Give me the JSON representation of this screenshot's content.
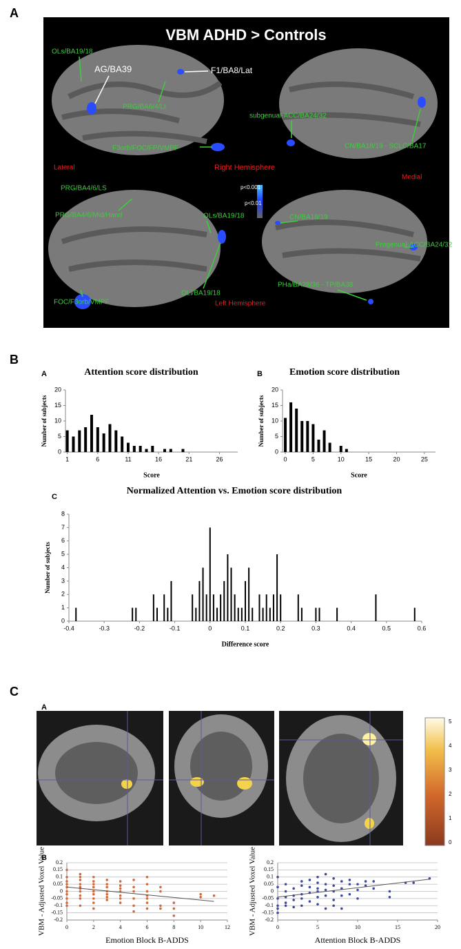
{
  "panel_labels": [
    "A",
    "B",
    "C"
  ],
  "brain_figure": {
    "title": "VBM ADHD > Controls",
    "annotations": [
      "OLs/BA19/18",
      "AG/BA39",
      "F1/BA8/Lat",
      "PRG/BA6/4/Lt",
      "subgenual-ACC/BA24/32",
      "F3orb/FOC/FP/VMPF",
      "CN/BA18/19 - SCLC/BA17",
      "Lateral",
      "Right Hemisphere",
      "Medial",
      "PRG/BA4/6/LS",
      "p<0.001",
      "p<0.01",
      "PRG/BA4/6/Mid/Hand",
      "OLs/BA19/18",
      "CN/BA18/19",
      "Pregenual-ACC/BA24/32",
      "FOC/F3orb/VMPF",
      "OLi/BA19/18",
      "Left Hemisphere",
      "PHa/BA28/36 - TP/BA38"
    ]
  },
  "histogram_sub_labels": [
    "A",
    "B",
    "C"
  ],
  "correlation_sub_labels": [
    "A",
    "B"
  ],
  "colorbar": {
    "ticks": [
      0,
      1,
      2,
      3,
      4,
      5
    ]
  },
  "chart_data": [
    {
      "type": "bar",
      "title": "Attention score distribution",
      "x_label": "Score",
      "y_label": "Number of subjects",
      "x": [
        1,
        2,
        3,
        4,
        5,
        6,
        7,
        8,
        9,
        10,
        11,
        12,
        13,
        14,
        15,
        16,
        17,
        18,
        19,
        20
      ],
      "values": [
        7,
        5,
        7,
        8,
        12,
        8,
        6,
        9,
        7,
        5,
        3,
        2,
        2,
        1,
        2,
        0,
        1,
        1,
        0,
        1
      ],
      "xlim": [
        0.7,
        29
      ],
      "xticks": [
        1,
        6,
        11,
        16,
        21,
        26
      ],
      "ylim": [
        0,
        20
      ],
      "yticks": [
        0,
        5,
        10,
        15,
        20
      ],
      "color": "#000000"
    },
    {
      "type": "bar",
      "title": "Emotion score distribution",
      "x_label": "Score",
      "y_label": "Number of subjects",
      "x": [
        0,
        1,
        2,
        3,
        4,
        5,
        6,
        7,
        8,
        9,
        10,
        11
      ],
      "values": [
        11,
        16,
        14,
        10,
        10,
        9,
        4,
        7,
        3,
        0,
        2,
        1
      ],
      "xlim": [
        -0.5,
        27
      ],
      "xticks": [
        0,
        5,
        10,
        15,
        20,
        25
      ],
      "ylim": [
        0,
        20
      ],
      "yticks": [
        0,
        5,
        10,
        15,
        20
      ],
      "color": "#000000"
    },
    {
      "type": "bar",
      "title": "Normalized Attention vs. Emotion score distribution",
      "x_label": "Difference score",
      "y_label": "Number of subjects",
      "x": [
        -0.38,
        -0.22,
        -0.21,
        -0.16,
        -0.15,
        -0.13,
        -0.12,
        -0.11,
        -0.05,
        -0.04,
        -0.03,
        -0.02,
        -0.01,
        0,
        0.01,
        0.02,
        0.03,
        0.04,
        0.05,
        0.06,
        0.07,
        0.08,
        0.09,
        0.1,
        0.11,
        0.12,
        0.14,
        0.15,
        0.16,
        0.17,
        0.18,
        0.19,
        0.2,
        0.25,
        0.26,
        0.3,
        0.31,
        0.36,
        0.47,
        0.58
      ],
      "values": [
        1,
        1,
        1,
        2,
        1,
        2,
        1,
        3,
        2,
        1,
        3,
        4,
        2,
        7,
        2,
        1,
        2,
        3,
        5,
        4,
        2,
        1,
        1,
        3,
        4,
        1,
        2,
        1,
        2,
        1,
        2,
        5,
        2,
        2,
        1,
        1,
        1,
        1,
        2,
        1
      ],
      "xlim": [
        -0.4,
        0.6
      ],
      "xticks": [
        -0.4,
        -0.3,
        -0.2,
        -0.1,
        0,
        0.1,
        0.2,
        0.3,
        0.4,
        0.5,
        0.6
      ],
      "ylim": [
        0,
        8
      ],
      "yticks": [
        0,
        1,
        2,
        3,
        4,
        5,
        6,
        7,
        8
      ],
      "color": "#000000"
    },
    {
      "type": "scatter",
      "x_label": "Emotion Block B-ADDS",
      "y_label": "VBM - Adjusted Voxel Value",
      "color": "#d2693c",
      "x": [
        0,
        0,
        0,
        0,
        0,
        0,
        0,
        0,
        0,
        0,
        1,
        1,
        1,
        1,
        1,
        1,
        1,
        1,
        1,
        1,
        2,
        2,
        2,
        2,
        2,
        2,
        2,
        2,
        2,
        3,
        3,
        3,
        3,
        3,
        3,
        3,
        4,
        4,
        4,
        4,
        4,
        4,
        4,
        5,
        5,
        5,
        5,
        5,
        5,
        6,
        6,
        6,
        6,
        6,
        6,
        6,
        7,
        7,
        7,
        7,
        8,
        8,
        8,
        10,
        10,
        11
      ],
      "values": [
        0.15,
        0.1,
        0.07,
        0.05,
        0.03,
        0,
        -0.02,
        -0.05,
        -0.08,
        -0.1,
        0.12,
        0.1,
        0.08,
        0.05,
        0.03,
        0.02,
        0,
        -0.03,
        -0.05,
        -0.1,
        0.1,
        0.07,
        0.05,
        0.03,
        0,
        -0.02,
        -0.05,
        -0.08,
        -0.12,
        0.08,
        0.05,
        0.03,
        0,
        -0.02,
        -0.04,
        -0.06,
        0.07,
        0.04,
        0.02,
        0,
        -0.03,
        -0.05,
        -0.08,
        0.08,
        0.03,
        0,
        -0.05,
        -0.1,
        -0.14,
        0.1,
        0.05,
        0,
        -0.03,
        -0.05,
        -0.08,
        -0.12,
        0.03,
        0,
        -0.1,
        -0.12,
        -0.08,
        -0.12,
        -0.17,
        -0.02,
        -0.04,
        -0.03
      ],
      "trend": {
        "x": [
          0,
          11
        ],
        "values": [
          0.03,
          -0.07
        ]
      },
      "xlim": [
        0,
        12
      ],
      "xticks": [
        0,
        2,
        4,
        6,
        8,
        10,
        12
      ],
      "ylim": [
        -0.2,
        0.2
      ],
      "yticks": [
        -0.2,
        -0.15,
        -0.1,
        -0.05,
        0,
        0.05,
        0.1,
        0.15,
        0.2
      ],
      "grid": true
    },
    {
      "type": "scatter",
      "x_label": "Attention Block B-ADDS",
      "y_label": "VBM - Adjusted Voxel Value",
      "color": "#3c4a9c",
      "x": [
        0,
        0,
        0,
        0,
        0,
        0,
        1,
        1,
        1,
        1,
        1,
        2,
        2,
        2,
        2,
        3,
        3,
        3,
        3,
        3,
        4,
        4,
        4,
        4,
        5,
        5,
        5,
        5,
        5,
        5,
        6,
        6,
        6,
        6,
        6,
        7,
        7,
        7,
        7,
        7,
        8,
        8,
        8,
        8,
        9,
        9,
        9,
        10,
        10,
        10,
        11,
        11,
        12,
        12,
        14,
        14,
        16,
        17,
        19
      ],
      "values": [
        0.1,
        0.03,
        -0.05,
        -0.1,
        -0.12,
        -0.15,
        0.05,
        0,
        -0.04,
        -0.08,
        -0.1,
        0.02,
        -0.03,
        -0.06,
        -0.11,
        0.07,
        0.04,
        -0.02,
        -0.05,
        -0.1,
        0.08,
        0.03,
        -0.01,
        -0.07,
        0.1,
        0.06,
        0.02,
        0,
        -0.04,
        -0.09,
        0.12,
        0.05,
        0.01,
        -0.03,
        -0.12,
        0.09,
        0.04,
        0,
        -0.06,
        -0.1,
        0.07,
        0.02,
        -0.03,
        -0.12,
        0.08,
        0.05,
        -0.02,
        0.05,
        0.01,
        -0.05,
        0.07,
        0.04,
        0.07,
        0.02,
        0,
        -0.04,
        0.06,
        0.06,
        0.09
      ],
      "trend": {
        "x": [
          0,
          19
        ],
        "values": [
          -0.04,
          0.085
        ]
      },
      "xlim": [
        0,
        20
      ],
      "xticks": [
        0,
        5,
        10,
        15,
        20
      ],
      "ylim": [
        -0.2,
        0.2
      ],
      "yticks": [
        -0.2,
        -0.15,
        -0.1,
        -0.05,
        0,
        0.05,
        0.1,
        0.15,
        0.2
      ],
      "grid": true
    }
  ]
}
